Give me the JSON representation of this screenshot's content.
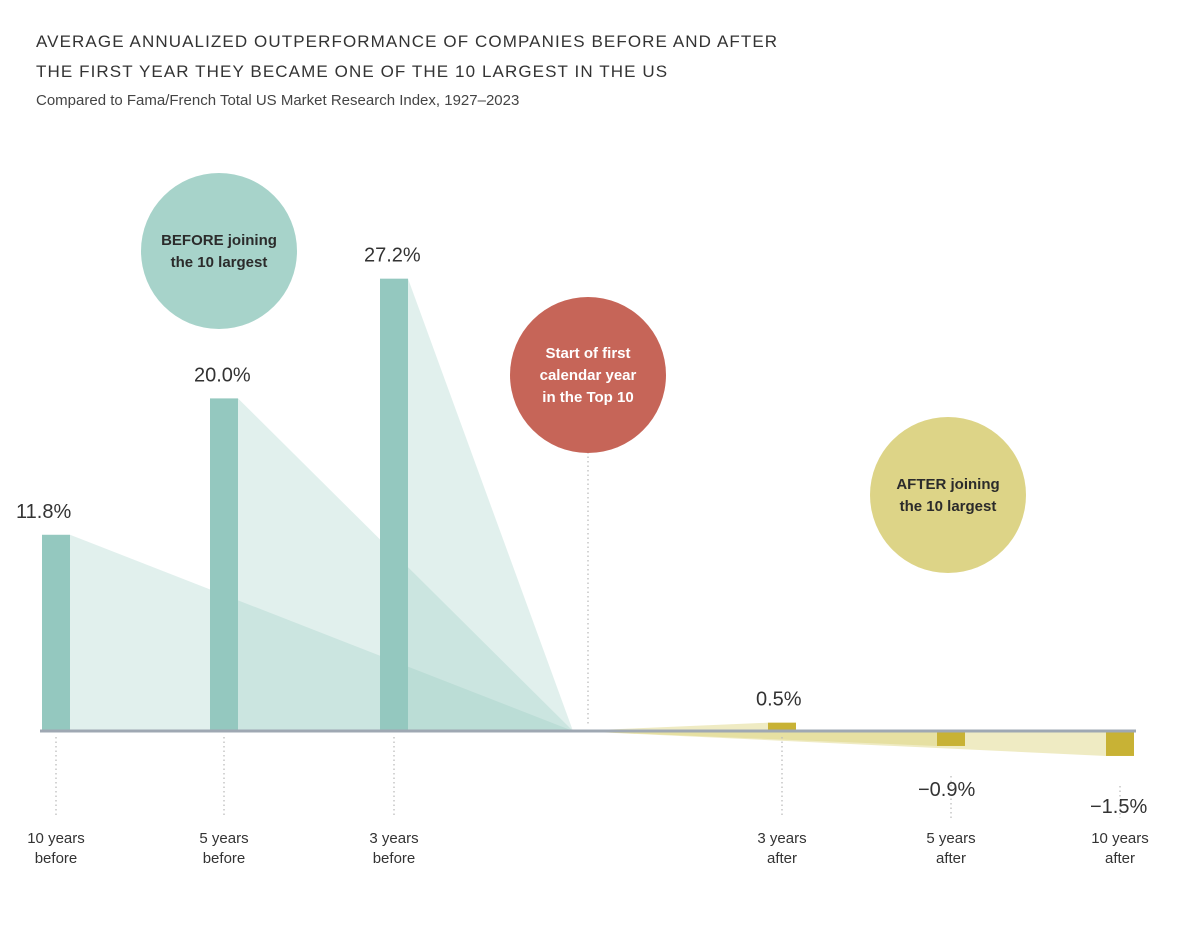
{
  "header": {
    "title_line1": "AVERAGE ANNUALIZED OUTPERFORMANCE OF COMPANIES BEFORE AND AFTER",
    "title_line2": "THE FIRST YEAR THEY BECAME ONE OF THE 10 LARGEST IN THE US",
    "subtitle": "Compared to Fama/French Total US Market Research Index, 1927–2023"
  },
  "chart_data": {
    "type": "bar",
    "title": "AVERAGE ANNUALIZED OUTPERFORMANCE OF COMPANIES BEFORE AND AFTER THE FIRST YEAR THEY BECAME ONE OF THE 10 LARGEST IN THE US",
    "subtitle": "Compared to Fama/French Total US Market Research Index, 1927–2023",
    "unit": "%",
    "ylim": [
      -2,
      30
    ],
    "grid": false,
    "categories": [
      [
        "10 years",
        "before"
      ],
      [
        "5 years",
        "before"
      ],
      [
        "3 years",
        "before"
      ],
      [
        "3 years",
        "after"
      ],
      [
        "5 years",
        "after"
      ],
      [
        "10 years",
        "after"
      ]
    ],
    "values": [
      11.8,
      20.0,
      27.2,
      0.5,
      -0.9,
      -1.5
    ],
    "value_labels": [
      "11.8%",
      "20.0%",
      "27.2%",
      "0.5%",
      "−0.9%",
      "−1.5%"
    ],
    "groups": [
      "before",
      "before",
      "before",
      "after",
      "after",
      "after"
    ],
    "annotations": {
      "before": [
        "BEFORE joining",
        "the 10 largest"
      ],
      "start": [
        "Start of first",
        "calendar year",
        "in the Top 10"
      ],
      "after": [
        "AFTER joining",
        "the 10 largest"
      ]
    },
    "colors": {
      "before_bar": "#94c8bf",
      "before_fan": "#94c8bf",
      "after_bar": "#c8b235",
      "after_fan": "#dcd27a",
      "axis": "#9fa8b3",
      "bubble_before": "#a7d3ca",
      "bubble_start": "#c66558",
      "bubble_after": "#ddd487"
    }
  }
}
